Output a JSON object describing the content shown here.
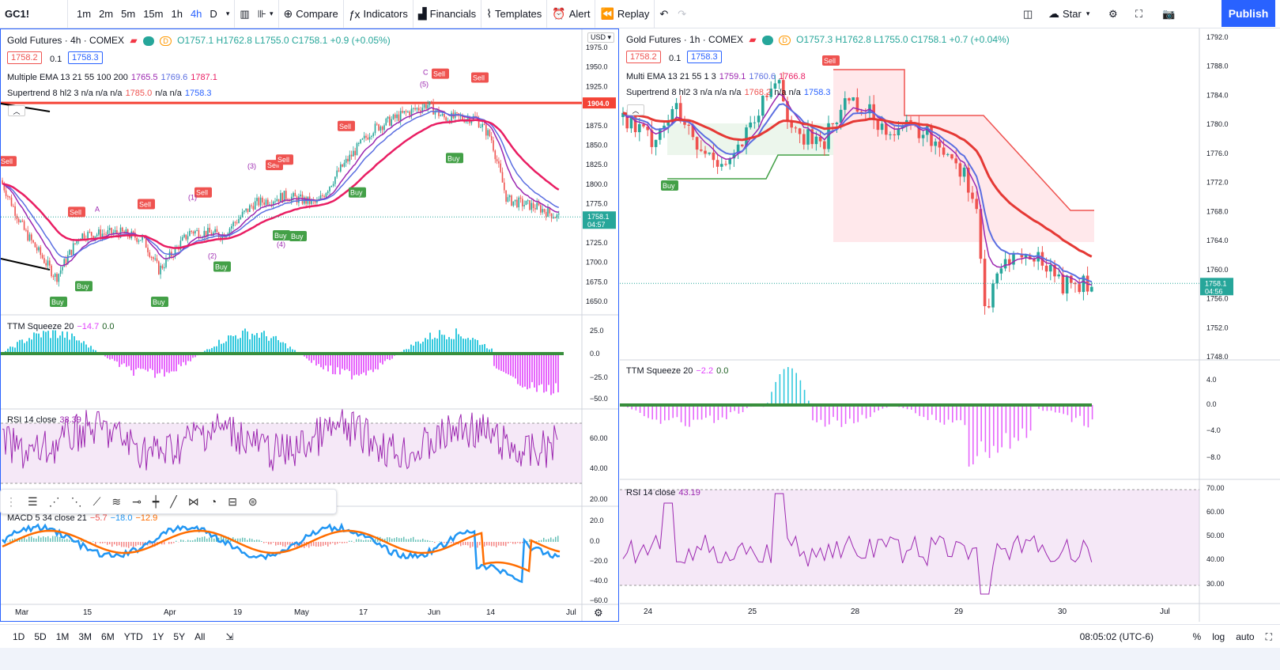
{
  "toolbar": {
    "symbol": "GC1!",
    "timeframes": [
      "1m",
      "2m",
      "5m",
      "15m",
      "1h",
      "4h",
      "D"
    ],
    "active_tf": "4h",
    "compare": "Compare",
    "indicators": "Indicators",
    "financials": "Financials",
    "templates": "Templates",
    "alert": "Alert",
    "replay": "Replay",
    "star": "Star",
    "publish": "Publish"
  },
  "bottom": {
    "ranges": [
      "1D",
      "5D",
      "1M",
      "3M",
      "6M",
      "YTD",
      "1Y",
      "5Y",
      "All"
    ],
    "clock": "08:05:02 (UTC-6)",
    "pct": "%",
    "log": "log",
    "auto": "auto"
  },
  "left": {
    "title": "Gold Futures · 4h · COMEX",
    "badge": "D",
    "ohlc": "O1757.1 H1762.8 L1755.0 C1758.1 +0.9 (+0.05%)",
    "bid": "1758.2",
    "spread": "0.1",
    "ask": "1758.3",
    "ema_legend": "Multiple EMA 13 21 55 100 200",
    "ema_vals": [
      "1765.5",
      "1769.6",
      "1787.1"
    ],
    "st_legend": "Supertrend 8 hl2 3  n/a  n/a  n/a",
    "st_vals": [
      "1785.0",
      "n/a n/a",
      "1758.3"
    ],
    "currency": "USD",
    "price_ticks": [
      "1975.0",
      "1950.0",
      "1925.0",
      "1900.0",
      "1875.0",
      "1850.0",
      "1825.0",
      "1800.0",
      "1775.0",
      "1750.0",
      "1725.0",
      "1700.0",
      "1675.0",
      "1650.0"
    ],
    "line_label": "1904.0",
    "last_price": "1758.1",
    "countdown": "04:57",
    "ttm_legend": "TTM Squeeze 20",
    "ttm_vals": [
      "−14.7",
      "0.0"
    ],
    "ttm_ticks": [
      "25.0",
      "0.0",
      "−25.0",
      "−50.0"
    ],
    "rsi_legend": "RSI 14 close",
    "rsi_val": "38.39",
    "rsi_ticks": [
      "60.00",
      "40.00",
      "20.00"
    ],
    "macd_legend": "MACD 5 34 close 21",
    "macd_vals": [
      "−5.7",
      "−18.0",
      "−12.9"
    ],
    "macd_ticks": [
      "20.0",
      "0.0",
      "−20.0",
      "−40.0",
      "−60.0"
    ],
    "dates": [
      "Mar",
      "15",
      "Apr",
      "19",
      "May",
      "17",
      "Jun",
      "14",
      "Jul"
    ],
    "wave_labels": [
      "A",
      "(1)",
      "(2)",
      "(3)",
      "(4)",
      "(5)",
      "C"
    ]
  },
  "right": {
    "title": "Gold Futures · 1h · COMEX",
    "badge": "D",
    "ohlc": "O1757.3 H1762.8 L1755.0 C1758.1 +0.7 (+0.04%)",
    "bid": "1758.2",
    "spread": "0.1",
    "ask": "1758.3",
    "ema_legend": "Multi EMA 13 21 55 1 3",
    "ema_vals": [
      "1759.1",
      "1760.6",
      "1766.8"
    ],
    "st_legend": "Supertrend 8 hl2 3  n/a  n/a  n/a",
    "st_vals": [
      "1768.2",
      "n/a n/a",
      "1758.3"
    ],
    "price_ticks": [
      "1792.0",
      "1788.0",
      "1784.0",
      "1780.0",
      "1776.0",
      "1772.0",
      "1768.0",
      "1764.0",
      "1760.0",
      "1756.0",
      "1752.0",
      "1748.0"
    ],
    "last_price": "1758.1",
    "countdown": "04:56",
    "ttm_legend": "TTM Squeeze 20",
    "ttm_vals": [
      "−2.2",
      "0.0"
    ],
    "ttm_ticks": [
      "4.0",
      "0.0",
      "−4.0",
      "−8.0"
    ],
    "rsi_legend": "RSI 14 close",
    "rsi_val": "43.19",
    "rsi_ticks": [
      "70.00",
      "60.00",
      "50.00",
      "40.00",
      "30.00"
    ],
    "dates": [
      "24",
      "25",
      "28",
      "29",
      "30",
      "Jul"
    ]
  },
  "signals": {
    "buy": "Buy",
    "sell": "Sell"
  },
  "colors": {
    "up": "#26a69a",
    "down": "#ef5350",
    "ema_fast": "#9c27b0",
    "ema_mid": "#5b6ee1",
    "ema_slow": "#e91e63",
    "accent": "#2962ff"
  }
}
